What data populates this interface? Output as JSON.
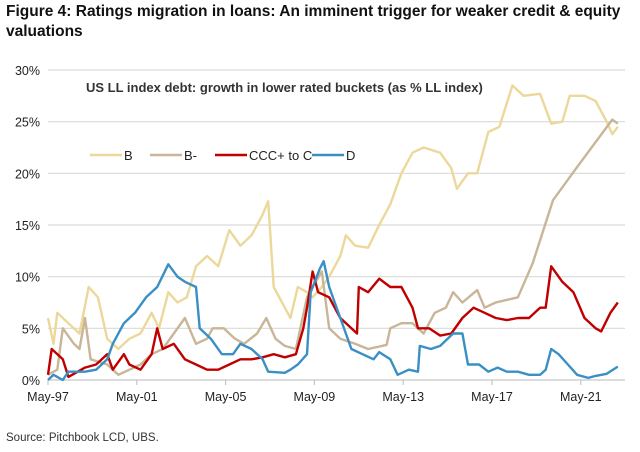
{
  "figure_title": "Figure 4: Ratings migration in loans: An imminent trigger for weaker credit & equity valuations",
  "source": "Source: Pitchbook LCD, UBS.",
  "chart_data": {
    "type": "line",
    "title": "US LL index debt: growth in lower rated buckets (as % LL index)",
    "xlabel": "",
    "ylabel": "",
    "ylim": [
      0,
      30
    ],
    "yticks": [
      "0%",
      "5%",
      "10%",
      "15%",
      "20%",
      "25%",
      "30%"
    ],
    "xticks": [
      "May-97",
      "May-01",
      "May-05",
      "May-09",
      "May-13",
      "May-17",
      "May-21"
    ],
    "grid": "horizontal",
    "legend": "top-left",
    "series": [
      {
        "name": "B",
        "color": "#ecd89a",
        "points": [
          [
            "1997-05",
            6
          ],
          [
            "1997-08",
            3.5
          ],
          [
            "1997-10",
            6.5
          ],
          [
            "1998-04",
            5.5
          ],
          [
            "1998-10",
            4.5
          ],
          [
            "1999-03",
            9
          ],
          [
            "1999-08",
            8
          ],
          [
            "2000-01",
            4
          ],
          [
            "2000-07",
            3
          ],
          [
            "2001-01",
            4
          ],
          [
            "2001-07",
            4.5
          ],
          [
            "2002-01",
            6.5
          ],
          [
            "2002-05",
            5
          ],
          [
            "2002-10",
            8.5
          ],
          [
            "2003-03",
            7.5
          ],
          [
            "2003-08",
            8
          ],
          [
            "2004-01",
            11
          ],
          [
            "2004-07",
            12
          ],
          [
            "2005-01",
            11
          ],
          [
            "2005-07",
            14.5
          ],
          [
            "2006-01",
            13
          ],
          [
            "2006-07",
            14
          ],
          [
            "2007-01",
            16
          ],
          [
            "2007-04",
            17.3
          ],
          [
            "2007-07",
            9
          ],
          [
            "2008-01",
            7
          ],
          [
            "2008-04",
            6
          ],
          [
            "2008-08",
            9
          ],
          [
            "2009-01",
            8.5
          ],
          [
            "2009-04",
            8
          ],
          [
            "2009-09",
            9
          ],
          [
            "2010-01",
            10
          ],
          [
            "2010-07",
            12
          ],
          [
            "2010-10",
            14
          ],
          [
            "2011-03",
            13
          ],
          [
            "2011-10",
            12.8
          ],
          [
            "2012-04",
            15
          ],
          [
            "2012-10",
            17
          ],
          [
            "2013-04",
            20
          ],
          [
            "2013-10",
            22
          ],
          [
            "2014-04",
            22.5
          ],
          [
            "2015-01",
            22
          ],
          [
            "2015-07",
            20.5
          ],
          [
            "2015-10",
            18.5
          ],
          [
            "2016-04",
            20
          ],
          [
            "2016-09",
            20
          ],
          [
            "2017-03",
            24
          ],
          [
            "2017-09",
            24.5
          ],
          [
            "2018-04",
            28.5
          ],
          [
            "2018-10",
            27.5
          ],
          [
            "2019-07",
            27.7
          ],
          [
            "2020-01",
            24.8
          ],
          [
            "2020-07",
            25
          ],
          [
            "2020-11",
            27.5
          ],
          [
            "2021-07",
            27.5
          ],
          [
            "2022-01",
            27
          ],
          [
            "2022-07",
            25
          ],
          [
            "2022-10",
            23.8
          ],
          [
            "2023-01",
            24.5
          ]
        ]
      },
      {
        "name": "B-",
        "color": "#c9b597",
        "points": [
          [
            "1997-05",
            0.5
          ],
          [
            "1997-10",
            1
          ],
          [
            "1998-01",
            5
          ],
          [
            "1998-07",
            3.5
          ],
          [
            "1998-10",
            3
          ],
          [
            "1999-01",
            6
          ],
          [
            "1999-04",
            2
          ],
          [
            "2000-01",
            1.5
          ],
          [
            "2000-07",
            0.5
          ],
          [
            "2001-01",
            1
          ],
          [
            "2001-07",
            1.5
          ],
          [
            "2002-01",
            2.5
          ],
          [
            "2002-07",
            3
          ],
          [
            "2003-01",
            4.5
          ],
          [
            "2003-07",
            6
          ],
          [
            "2004-01",
            3.5
          ],
          [
            "2004-07",
            4
          ],
          [
            "2004-10",
            5
          ],
          [
            "2005-04",
            5
          ],
          [
            "2005-10",
            4
          ],
          [
            "2006-03",
            3.5
          ],
          [
            "2006-10",
            4.5
          ],
          [
            "2007-03",
            6
          ],
          [
            "2007-08",
            4
          ],
          [
            "2008-01",
            3.3
          ],
          [
            "2008-07",
            3
          ],
          [
            "2009-01",
            8
          ],
          [
            "2009-04",
            9
          ],
          [
            "2009-09",
            10.5
          ],
          [
            "2010-01",
            5
          ],
          [
            "2010-07",
            4
          ],
          [
            "2011-03",
            3.5
          ],
          [
            "2011-10",
            3
          ],
          [
            "2012-08",
            3.4
          ],
          [
            "2012-10",
            5
          ],
          [
            "2013-04",
            5.5
          ],
          [
            "2013-10",
            5.5
          ],
          [
            "2014-04",
            4.5
          ],
          [
            "2014-10",
            6.5
          ],
          [
            "2015-04",
            7
          ],
          [
            "2015-08",
            8.5
          ],
          [
            "2016-01",
            7.5
          ],
          [
            "2016-09",
            8.7
          ],
          [
            "2017-01",
            7
          ],
          [
            "2017-07",
            7.5
          ],
          [
            "2018-07",
            8
          ],
          [
            "2019-03",
            11.3
          ],
          [
            "2020-02",
            17.4
          ],
          [
            "2021-03",
            20.6
          ],
          [
            "2022-10",
            25.2
          ],
          [
            "2023-01",
            24.8
          ]
        ]
      },
      {
        "name": "CCC+ to C",
        "color": "#c00000",
        "points": [
          [
            "1997-05",
            0.5
          ],
          [
            "1997-07",
            3
          ],
          [
            "1998-01",
            2
          ],
          [
            "1998-04",
            0.3
          ],
          [
            "1999-01",
            1.2
          ],
          [
            "1999-07",
            1.5
          ],
          [
            "2000-01",
            2.5
          ],
          [
            "2000-04",
            1
          ],
          [
            "2000-10",
            2.5
          ],
          [
            "2001-01",
            1.5
          ],
          [
            "2001-07",
            1
          ],
          [
            "2002-01",
            2.5
          ],
          [
            "2002-04",
            5
          ],
          [
            "2002-07",
            3
          ],
          [
            "2003-01",
            3.5
          ],
          [
            "2003-07",
            2
          ],
          [
            "2004-01",
            1.5
          ],
          [
            "2004-07",
            1
          ],
          [
            "2005-01",
            1
          ],
          [
            "2005-07",
            1.5
          ],
          [
            "2006-01",
            2
          ],
          [
            "2006-07",
            2
          ],
          [
            "2007-01",
            2.2
          ],
          [
            "2007-07",
            2.5
          ],
          [
            "2008-01",
            2.2
          ],
          [
            "2008-07",
            2.5
          ],
          [
            "2008-11",
            5
          ],
          [
            "2009-01",
            7
          ],
          [
            "2009-04",
            10.5
          ],
          [
            "2009-07",
            8.5
          ],
          [
            "2010-01",
            8
          ],
          [
            "2010-07",
            6
          ],
          [
            "2011-01",
            5
          ],
          [
            "2011-04",
            4.5
          ],
          [
            "2011-05",
            9
          ],
          [
            "2011-10",
            8.5
          ],
          [
            "2012-04",
            9.8
          ],
          [
            "2012-10",
            9
          ],
          [
            "2013-04",
            9
          ],
          [
            "2013-10",
            7
          ],
          [
            "2014-01",
            5
          ],
          [
            "2014-07",
            5
          ],
          [
            "2015-01",
            4.3
          ],
          [
            "2015-07",
            4.5
          ],
          [
            "2016-01",
            6
          ],
          [
            "2016-07",
            7
          ],
          [
            "2017-01",
            6.5
          ],
          [
            "2017-07",
            6
          ],
          [
            "2018-01",
            5.8
          ],
          [
            "2018-07",
            6
          ],
          [
            "2019-01",
            6
          ],
          [
            "2019-07",
            7
          ],
          [
            "2019-10",
            7
          ],
          [
            "2020-01",
            11
          ],
          [
            "2020-07",
            9.5
          ],
          [
            "2021-01",
            8.5
          ],
          [
            "2021-07",
            6
          ],
          [
            "2022-01",
            5
          ],
          [
            "2022-04",
            4.7
          ],
          [
            "2022-09",
            6.5
          ],
          [
            "2023-01",
            7.5
          ]
        ]
      },
      {
        "name": "D",
        "color": "#3a8fc4",
        "points": [
          [
            "1997-05",
            0
          ],
          [
            "1997-08",
            0.5
          ],
          [
            "1998-01",
            0
          ],
          [
            "1998-04",
            0.8
          ],
          [
            "1999-01",
            0.8
          ],
          [
            "1999-07",
            1
          ],
          [
            "2000-01",
            2
          ],
          [
            "2000-04",
            3.5
          ],
          [
            "2000-10",
            5.5
          ],
          [
            "2001-04",
            6.5
          ],
          [
            "2001-10",
            8
          ],
          [
            "2002-04",
            9
          ],
          [
            "2002-10",
            11.2
          ],
          [
            "2003-03",
            10
          ],
          [
            "2003-07",
            9.5
          ],
          [
            "2004-01",
            9
          ],
          [
            "2004-03",
            5
          ],
          [
            "2004-09",
            4
          ],
          [
            "2005-03",
            2.5
          ],
          [
            "2005-09",
            2.5
          ],
          [
            "2006-01",
            3.5
          ],
          [
            "2006-07",
            3
          ],
          [
            "2007-01",
            2
          ],
          [
            "2007-04",
            0.8
          ],
          [
            "2008-01",
            0.7
          ],
          [
            "2008-04",
            1
          ],
          [
            "2008-08",
            1.5
          ],
          [
            "2009-01",
            2.5
          ],
          [
            "2009-03",
            8.5
          ],
          [
            "2009-08",
            10.8
          ],
          [
            "2009-10",
            11.5
          ],
          [
            "2010-01",
            9
          ],
          [
            "2010-07",
            6
          ],
          [
            "2011-01",
            3
          ],
          [
            "2011-07",
            2.5
          ],
          [
            "2012-01",
            2
          ],
          [
            "2012-04",
            2.7
          ],
          [
            "2012-10",
            2
          ],
          [
            "2013-02",
            0.5
          ],
          [
            "2013-08",
            1
          ],
          [
            "2014-01",
            0.8
          ],
          [
            "2014-02",
            3.3
          ],
          [
            "2014-08",
            3
          ],
          [
            "2015-01",
            3.3
          ],
          [
            "2015-08",
            4.5
          ],
          [
            "2016-01",
            4.5
          ],
          [
            "2016-04",
            1.5
          ],
          [
            "2016-10",
            1.5
          ],
          [
            "2017-03",
            0.8
          ],
          [
            "2017-08",
            1.2
          ],
          [
            "2018-01",
            0.8
          ],
          [
            "2018-07",
            0.8
          ],
          [
            "2019-01",
            0.5
          ],
          [
            "2019-07",
            0.5
          ],
          [
            "2019-10",
            1
          ],
          [
            "2020-01",
            3
          ],
          [
            "2020-05",
            2.5
          ],
          [
            "2020-10",
            1.5
          ],
          [
            "2021-03",
            0.5
          ],
          [
            "2021-09",
            0.2
          ],
          [
            "2022-01",
            0.4
          ],
          [
            "2022-07",
            0.6
          ],
          [
            "2023-01",
            1.3
          ]
        ]
      }
    ]
  }
}
